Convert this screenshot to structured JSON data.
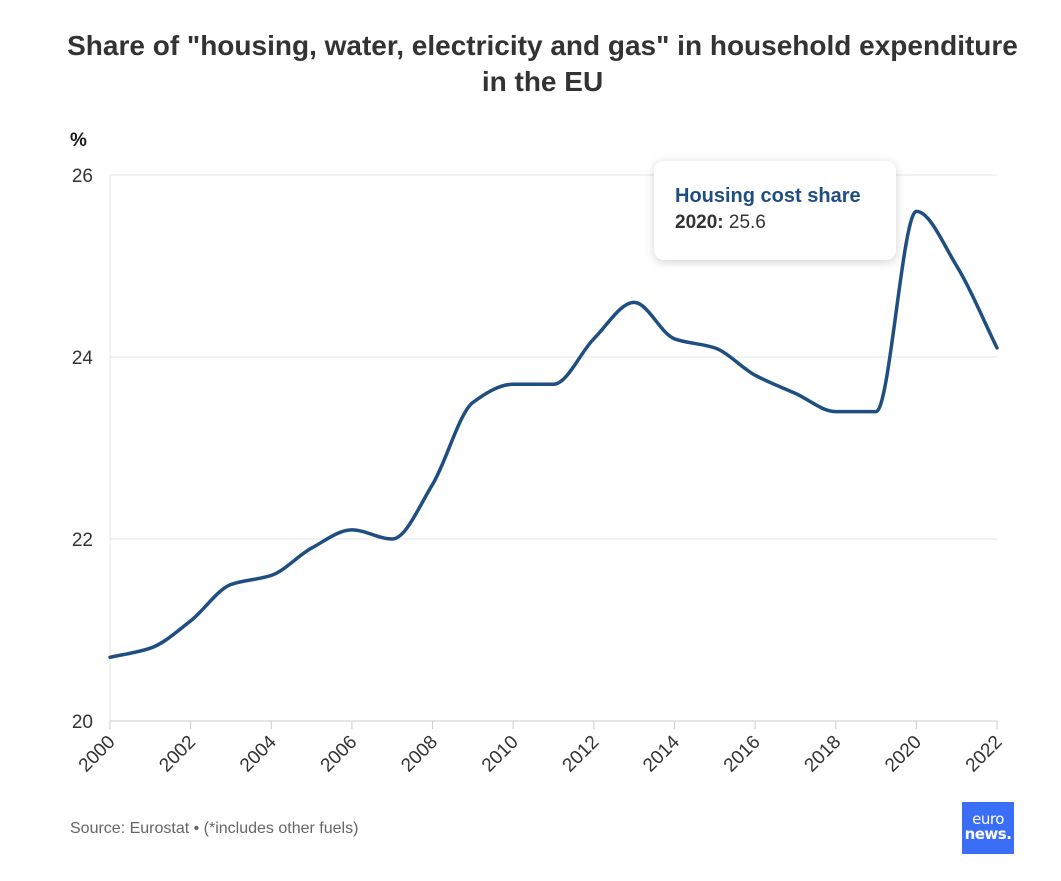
{
  "title": "Share of \"housing, water, electricity and gas\" in household expenditure in the EU",
  "y_unit": "%",
  "tooltip": {
    "series": "Housing cost share",
    "year": "2020:",
    "value": "25.6"
  },
  "source": "Source: Eurostat • (*includes other fuels)",
  "logo": {
    "line1": "euro",
    "line2": "news."
  },
  "colors": {
    "line": "#1f4e80",
    "grid": "#e6e6e6",
    "axis": "#cccccc",
    "logo_bg": "#3b6ef6"
  },
  "chart_data": {
    "type": "line",
    "title": "Share of \"housing, water, electricity and gas\" in household expenditure in the EU",
    "xlabel": "",
    "ylabel": "%",
    "x": [
      2000,
      2001,
      2002,
      2003,
      2004,
      2005,
      2006,
      2007,
      2008,
      2009,
      2010,
      2011,
      2012,
      2013,
      2014,
      2015,
      2016,
      2017,
      2018,
      2019,
      2020,
      2021,
      2022
    ],
    "series": [
      {
        "name": "Housing cost share",
        "values": [
          20.7,
          20.8,
          21.1,
          21.5,
          21.6,
          21.9,
          22.1,
          22.0,
          22.6,
          23.5,
          23.7,
          23.7,
          24.2,
          24.6,
          24.2,
          24.1,
          23.8,
          23.6,
          23.4,
          23.4,
          25.6,
          25.0,
          24.1
        ]
      }
    ],
    "xticks": [
      "2000",
      "2002",
      "2004",
      "2006",
      "2008",
      "2010",
      "2012",
      "2014",
      "2016",
      "2018",
      "2020",
      "2022"
    ],
    "yticks": [
      "20",
      "22",
      "24",
      "26"
    ],
    "xlim": [
      2000,
      2022
    ],
    "ylim": [
      20,
      26
    ],
    "grid": true,
    "legend": "none"
  }
}
